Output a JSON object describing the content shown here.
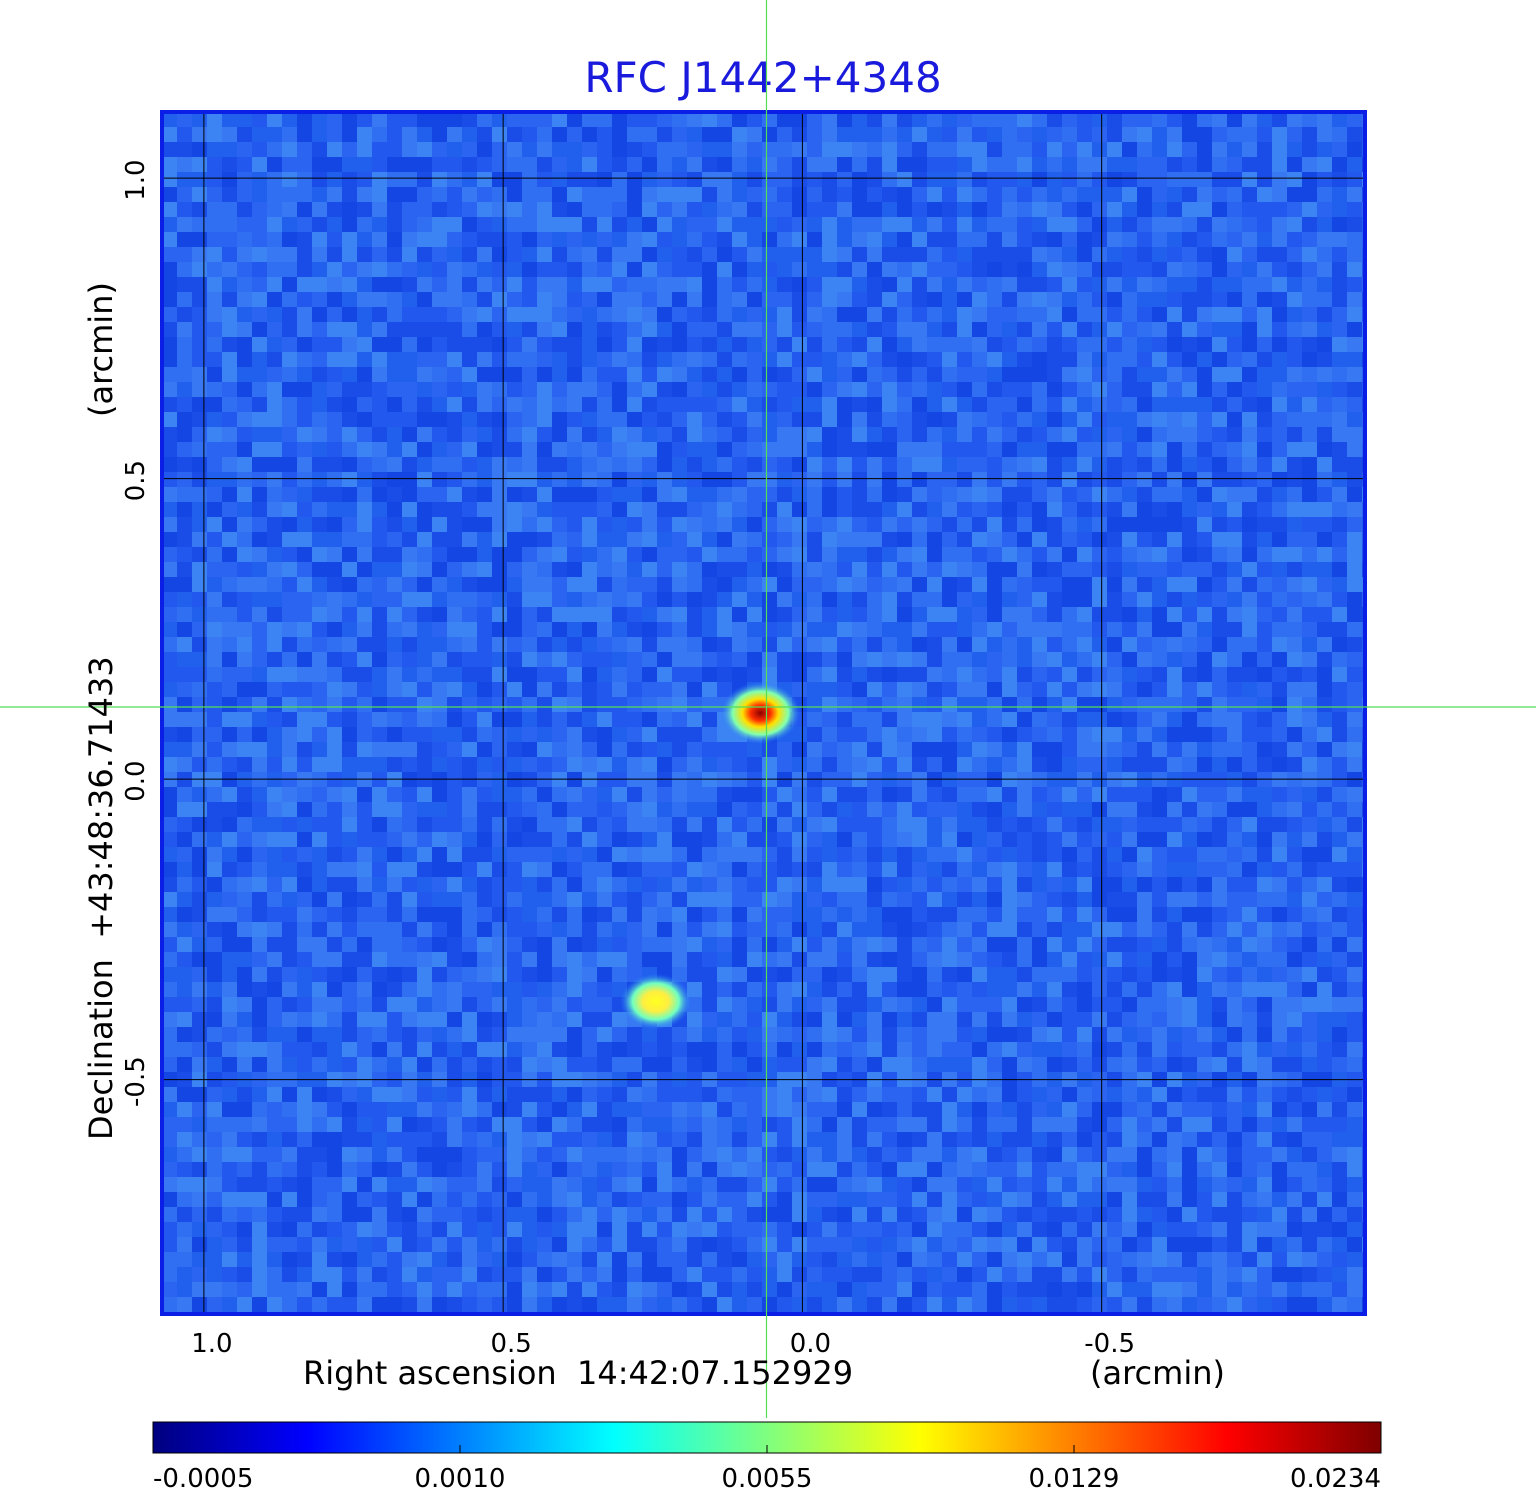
{
  "chart_data": {
    "type": "heatmap",
    "title": "RFC J1442+4348",
    "title_color": "#1a1adc",
    "xlabel": "Right ascension  14:42:07.152929",
    "xunit": "(arcmin)",
    "ylabel": "Declination  +43:48:36.71433",
    "yunit": "(arcmin)",
    "xlim": [
      1.07,
      -0.94
    ],
    "ylim": [
      -0.89,
      1.11
    ],
    "x_ticks": [
      1.0,
      0.5,
      0.0,
      -0.5
    ],
    "x_tick_labels": [
      "1.0",
      "0.5",
      "0.0",
      "-0.5"
    ],
    "y_ticks": [
      1.0,
      0.5,
      0.0,
      -0.5
    ],
    "y_tick_labels": [
      "1.0",
      "0.5",
      "0.0",
      "-0.5"
    ],
    "grid": true,
    "crosshair": {
      "x": 0.06,
      "y": 0.12,
      "color": "#55dd55"
    },
    "sources": [
      {
        "x": 0.07,
        "y": 0.11,
        "peak": 0.0234
      },
      {
        "x": 0.245,
        "y": -0.37,
        "peak": 0.009
      }
    ],
    "colorbar": {
      "colormap": "jet",
      "tick_labels": [
        "-0.0005",
        "0.0010",
        "0.0055",
        "0.0129",
        "0.0234"
      ],
      "colors": [
        "#00007f",
        "#0000ff",
        "#007fff",
        "#00ffff",
        "#7fff7f",
        "#ffff00",
        "#ff7f00",
        "#ff0000",
        "#7f0000"
      ]
    },
    "frame_color": "#0a1ee6"
  }
}
